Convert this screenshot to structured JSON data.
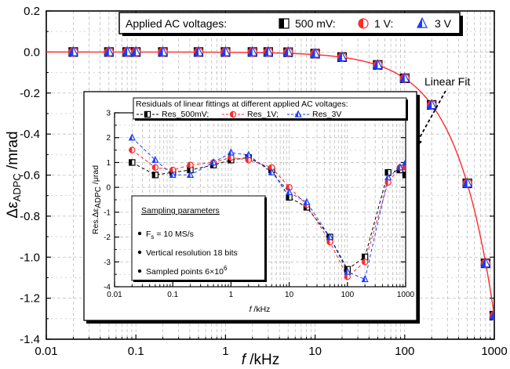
{
  "chart_data": [
    {
      "type": "scatter",
      "xscale": "log",
      "xlim": [
        0.01,
        1000
      ],
      "ylim": [
        -1.4,
        0.2
      ],
      "xlabel_italic": "f",
      "xlabel_unit": " /kHz",
      "ylabel_main": "Δε",
      "ylabel_sub": "ADPC",
      "ylabel_unit": " /mrad",
      "x_ticks": [
        0.01,
        0.1,
        1,
        10,
        100,
        1000
      ],
      "x_tick_labels": [
        "0.01",
        "0.1",
        "1",
        "10",
        "100",
        "1000"
      ],
      "y_ticks": [
        0.2,
        0.0,
        -0.2,
        -0.4,
        -0.6,
        -0.8,
        -1.0,
        -1.2,
        -1.4
      ],
      "y_tick_labels": [
        "0.2",
        "0.0",
        "-0.2",
        "-0.4",
        "-0.6",
        "-0.8",
        "-1.0",
        "-1.2",
        "-1.4"
      ],
      "grid": true,
      "legend": {
        "title": "Applied AC voltages:",
        "placement": "top-center",
        "entries": [
          "500 mV:",
          "1 V:",
          "3 V"
        ]
      },
      "annotation": "Linear Fit",
      "x": [
        0.02,
        0.05,
        0.08,
        0.1,
        0.2,
        0.5,
        1,
        2,
        3,
        5,
        10,
        20,
        50,
        100,
        200,
        500,
        800,
        1000
      ],
      "series": [
        {
          "name": "500 mV",
          "marker": "half-square",
          "color": "#000000",
          "values": [
            0.0,
            0.0,
            0.0,
            0.0,
            0.0,
            0.0,
            0.0,
            0.0,
            0.0,
            -0.001,
            -0.008,
            -0.025,
            -0.063,
            -0.128,
            -0.258,
            -0.64,
            -1.03,
            -1.285
          ]
        },
        {
          "name": "1 V",
          "marker": "half-circle",
          "color": "#ff2a2a",
          "values": [
            0.0,
            0.0,
            0.0,
            0.0,
            0.0,
            0.0,
            0.0,
            0.0,
            0.0,
            -0.001,
            -0.008,
            -0.025,
            -0.063,
            -0.128,
            -0.258,
            -0.64,
            -1.03,
            -1.285
          ]
        },
        {
          "name": "3 V",
          "marker": "half-triangle",
          "color": "#1a3cff",
          "values": [
            0.0,
            0.0,
            0.0,
            0.0,
            0.0,
            0.0,
            0.0,
            0.0,
            0.0,
            -0.001,
            -0.008,
            -0.025,
            -0.063,
            -0.128,
            -0.258,
            -0.64,
            -1.03,
            -1.285
          ]
        }
      ],
      "fit_line": {
        "color": "#ff2a2a",
        "slope_per_kHz": -0.001285
      }
    },
    {
      "type": "line",
      "xscale": "log",
      "xlim": [
        0.01,
        1000
      ],
      "ylim": [
        -4,
        3
      ],
      "title": "Residuals of linear fittings at different applied AC voltages:",
      "xlabel_italic": "f",
      "xlabel_unit": " /kHz",
      "ylabel_main": "Res.Δε",
      "ylabel_sub": "ADPC",
      "ylabel_unit": " /μrad",
      "x_ticks": [
        0.01,
        0.1,
        1,
        10,
        100,
        1000
      ],
      "x_tick_labels": [
        "0.01",
        "0.1",
        "1",
        "10",
        "100",
        "1000"
      ],
      "y_ticks": [
        3,
        2,
        1,
        0,
        -1,
        -2,
        -3,
        -4
      ],
      "y_tick_labels": [
        "3",
        "2",
        "1",
        "0",
        "-1",
        "-2",
        "-3",
        "-4"
      ],
      "grid": true,
      "legend": {
        "placement": "top",
        "entries": [
          "Res_500mV;",
          "Res_1V;",
          "Res_3V"
        ]
      },
      "x": [
        0.02,
        0.05,
        0.1,
        0.2,
        0.5,
        1,
        2,
        5,
        10,
        20,
        50,
        100,
        200,
        500,
        800,
        1000
      ],
      "series": [
        {
          "name": "Res_500mV",
          "marker": "half-square",
          "color": "#000000",
          "values": [
            1.0,
            0.5,
            0.6,
            0.7,
            0.9,
            1.1,
            1.2,
            0.7,
            -0.4,
            -0.8,
            -2.0,
            -3.3,
            -2.8,
            0.6,
            0.7,
            0.5
          ]
        },
        {
          "name": "Res_1V",
          "marker": "half-circle",
          "color": "#ff2a2a",
          "values": [
            1.5,
            0.8,
            0.7,
            0.9,
            1.0,
            1.2,
            1.1,
            0.8,
            0.0,
            -0.7,
            -2.2,
            -3.6,
            -3.0,
            0.2,
            0.8,
            0.8
          ]
        },
        {
          "name": "Res_3V",
          "marker": "half-triangle",
          "color": "#1a3cff",
          "values": [
            2.0,
            1.1,
            0.5,
            0.5,
            1.0,
            1.4,
            1.3,
            0.6,
            -0.2,
            -0.6,
            -2.0,
            -3.4,
            -3.7,
            0.4,
            0.8,
            1.0
          ]
        }
      ],
      "info_box": {
        "title": "Sampling parameters",
        "items": [
          {
            "main": "F",
            "sub": "s",
            "rest": " = 10 MS/s"
          },
          {
            "main": "Vertical resolution 18 bits"
          },
          {
            "main": "Sampled points 6×10",
            "sup": "6"
          }
        ]
      }
    }
  ]
}
